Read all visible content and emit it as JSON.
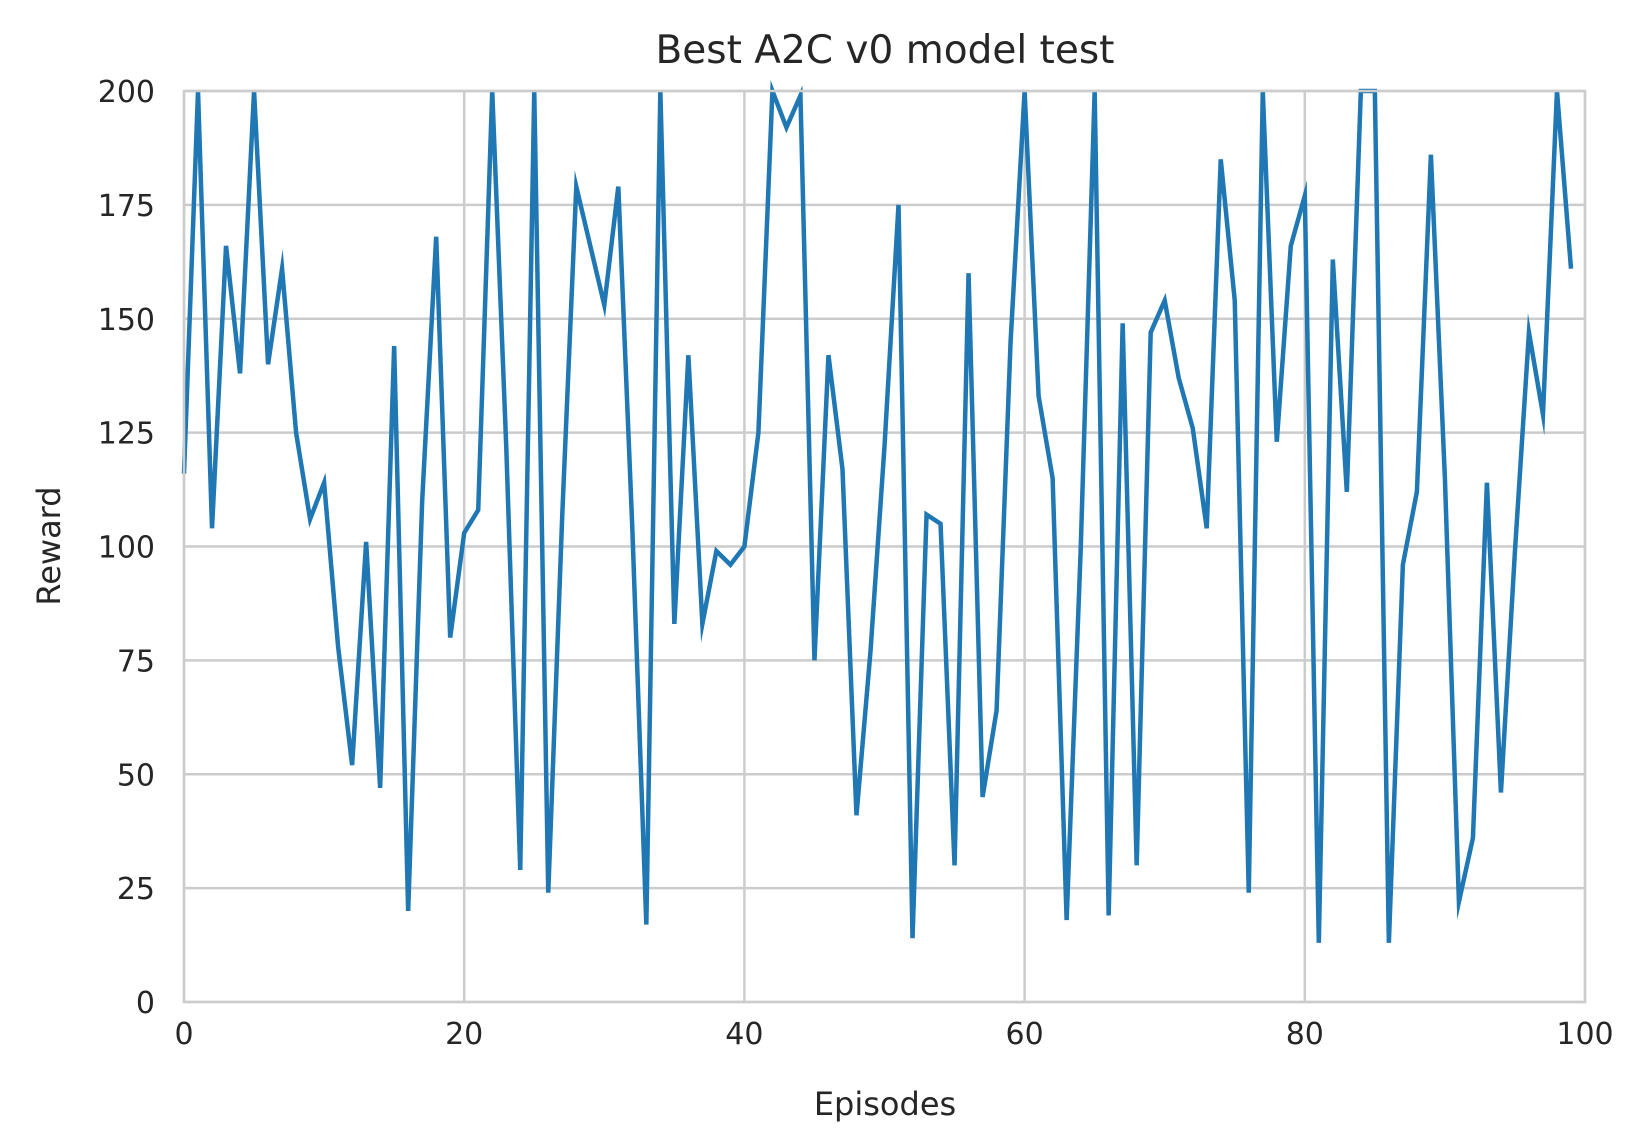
{
  "chart_data": {
    "type": "line",
    "title": "Best A2C v0 model test",
    "xlabel": "Episodes",
    "ylabel": "Reward",
    "xlim": [
      0,
      100
    ],
    "ylim": [
      0,
      200
    ],
    "xticks": [
      0,
      20,
      40,
      60,
      80,
      100
    ],
    "yticks": [
      0,
      25,
      50,
      75,
      100,
      125,
      150,
      175,
      200
    ],
    "grid": true,
    "legend": null,
    "series": [
      {
        "color": "#1f77b4",
        "x": [
          0,
          1,
          2,
          3,
          4,
          5,
          6,
          7,
          8,
          9,
          10,
          11,
          12,
          13,
          14,
          15,
          16,
          17,
          18,
          19,
          20,
          21,
          22,
          23,
          24,
          25,
          26,
          27,
          28,
          29,
          30,
          31,
          32,
          33,
          34,
          35,
          36,
          37,
          38,
          39,
          40,
          41,
          42,
          43,
          44,
          45,
          46,
          47,
          48,
          49,
          50,
          51,
          52,
          53,
          54,
          55,
          56,
          57,
          58,
          59,
          60,
          61,
          62,
          63,
          64,
          65,
          66,
          67,
          68,
          69,
          70,
          71,
          72,
          73,
          74,
          75,
          76,
          77,
          78,
          79,
          80,
          81,
          82,
          83,
          84,
          85,
          86,
          87,
          88,
          89,
          90,
          91,
          92,
          93,
          94,
          95,
          96,
          97,
          98,
          99
        ],
        "values": [
          116,
          200,
          104,
          166,
          138,
          200,
          140,
          161,
          125,
          106,
          114,
          78,
          52,
          101,
          47,
          144,
          20,
          110,
          168,
          80,
          103,
          108,
          200,
          122,
          29,
          200,
          24,
          107,
          179,
          166,
          153,
          179,
          104,
          17,
          200,
          83,
          142,
          83,
          99,
          96,
          100,
          125,
          200,
          192,
          199,
          75,
          142,
          117,
          41,
          77,
          122,
          175,
          14,
          107,
          105,
          30,
          160,
          45,
          64,
          145,
          200,
          133,
          115,
          18,
          99,
          200,
          19,
          149,
          30,
          147,
          154,
          137,
          126,
          104,
          185,
          154,
          24,
          200,
          123,
          166,
          177,
          13,
          163,
          112,
          200,
          200,
          13,
          96,
          112,
          186,
          115,
          22,
          36,
          114,
          46,
          99,
          147,
          129,
          200,
          161
        ]
      }
    ]
  }
}
